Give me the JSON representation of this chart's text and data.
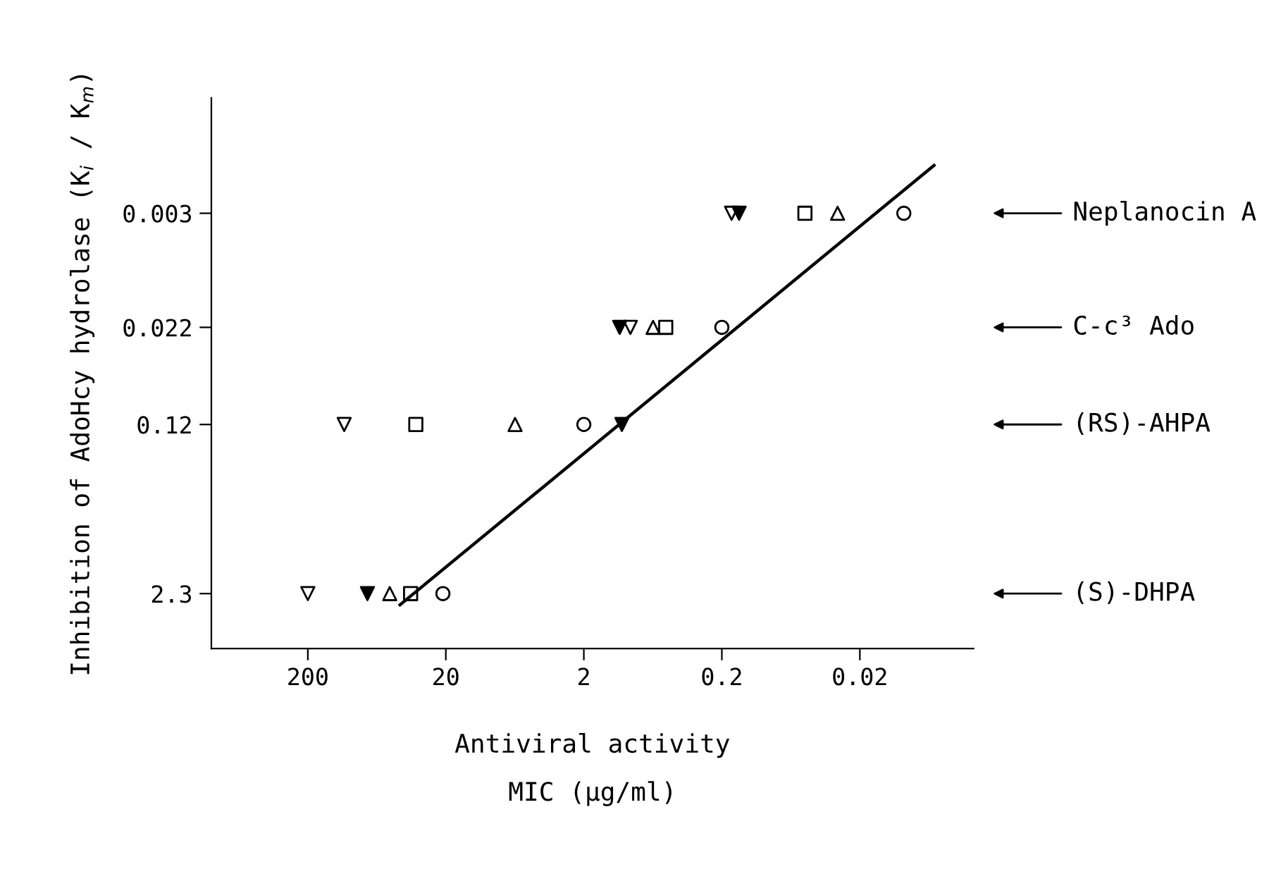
{
  "chart_data": {
    "type": "scatter",
    "xlabel": "Antiviral activity\nMIC (µg/ml)",
    "ylabel": "Inhibition of AdoHcy hydrolase (K$_{i}$ / K$_{m}$)",
    "log": "xy",
    "xlim": [
      1000,
      0.003
    ],
    "ylim": [
      6,
      0.0004
    ],
    "xticks": [
      200,
      20,
      2,
      0.2,
      0.02
    ],
    "yticks": [
      0.003,
      0.022,
      0.12,
      2.3
    ],
    "grid": false,
    "series": [
      {
        "marker": "circle",
        "color": "#000000",
        "x": [
          21,
          2,
          0.2,
          0.0096
        ],
        "values": [
          2.3,
          0.12,
          0.022,
          0.003
        ]
      },
      {
        "marker": "square",
        "color": "#000000",
        "x": [
          36,
          33,
          0.51,
          0.05
        ],
        "values": [
          2.3,
          0.12,
          0.022,
          0.003
        ]
      },
      {
        "marker": "triangle",
        "color": "#000000",
        "x": [
          51,
          6.3,
          0.63,
          0.029
        ],
        "values": [
          2.3,
          0.12,
          0.022,
          0.003
        ]
      },
      {
        "marker": "triangle_down",
        "color": "#000000",
        "x": [
          200,
          109,
          0.92,
          0.17
        ],
        "values": [
          2.3,
          0.12,
          0.022,
          0.003
        ]
      },
      {
        "marker": "triangle_down_filled",
        "color": "#000000",
        "x": [
          74,
          1.06,
          1.1,
          0.15
        ],
        "values": [
          2.3,
          0.12,
          0.022,
          0.003
        ]
      },
      {
        "type": "line",
        "line_style": "solid",
        "color": "#000000",
        "x": [
          43,
          0.0058
        ],
        "values": [
          2.8,
          0.0013
        ]
      }
    ],
    "annotations": [
      "Neplanocin A",
      "C-c³ Ado",
      "(RS)-AHPA",
      "(S)-DHPA"
    ]
  }
}
